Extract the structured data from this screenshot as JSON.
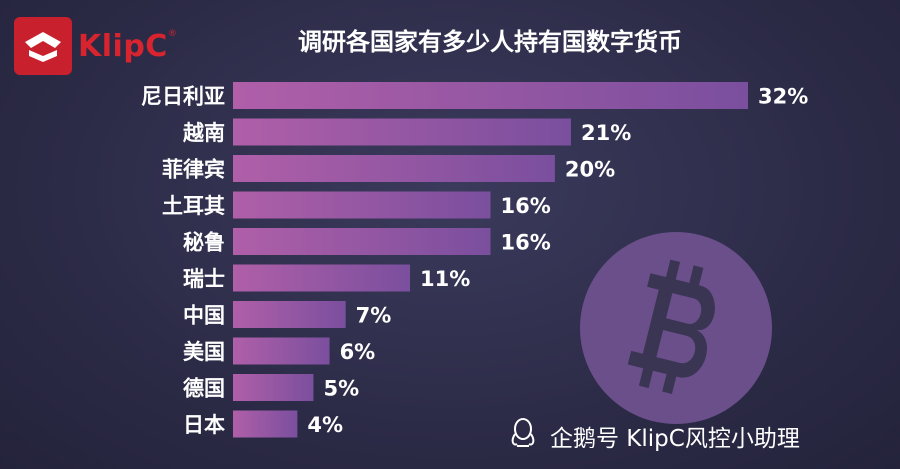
{
  "brand": {
    "name": "KlipC",
    "mark": "®"
  },
  "watermark": {
    "text": "企鹅号 KlipC风控小助理"
  },
  "chart_data": {
    "type": "bar",
    "orientation": "horizontal",
    "title": "调研各国家有多少人持有国数字货币",
    "categories": [
      "尼日利亚",
      "越南",
      "菲律宾",
      "土耳其",
      "秘鲁",
      "瑞士",
      "中国",
      "美国",
      "德国",
      "日本"
    ],
    "values": [
      32,
      21,
      20,
      16,
      16,
      11,
      7,
      6,
      5,
      4
    ],
    "value_labels": [
      "32%",
      "21%",
      "20%",
      "16%",
      "16%",
      "11%",
      "7%",
      "6%",
      "5%",
      "4%"
    ],
    "unit": "%",
    "xlim": [
      0,
      32
    ],
    "grid": false,
    "colors": {
      "bar_start": "#b05fa8",
      "bar_end": "#7a4f9e",
      "accent": "#d8242f"
    }
  }
}
